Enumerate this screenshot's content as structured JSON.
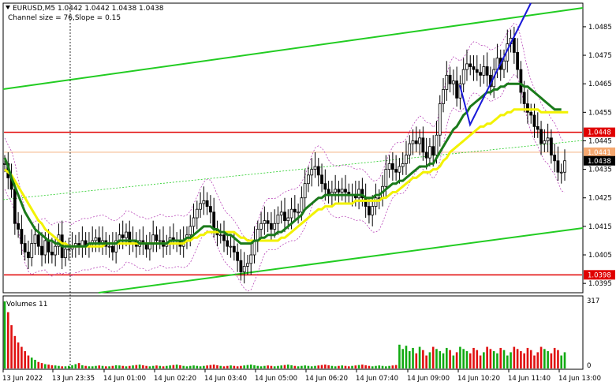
{
  "header": {
    "symbol_line": "EURUSD,M5  1.0442 1.0442 1.0438 1.0438",
    "channel_info": "Channel size = 76,Slope = 0.15"
  },
  "price_axis": {
    "ticks": [
      "1.0485",
      "1.0475",
      "1.0465",
      "1.0455",
      "1.0445",
      "1.0435",
      "1.0425",
      "1.0415",
      "1.0405",
      "1.0395"
    ],
    "tick_values": [
      1.0485,
      1.0475,
      1.0465,
      1.0455,
      1.0445,
      1.0435,
      1.0425,
      1.0415,
      1.0405,
      1.0395
    ],
    "ymin": 1.0392,
    "ymax": 1.0493,
    "level_labels": [
      {
        "text": "1.0448",
        "value": 1.0448,
        "bg": "#e00000",
        "fg": "#ffffff"
      },
      {
        "text": "1.0441",
        "value": 1.0441,
        "bg": "#f5a870",
        "fg": "#ffffff"
      },
      {
        "text": "1.0438",
        "value": 1.0438,
        "bg": "#000000",
        "fg": "#ffffff"
      },
      {
        "text": "1.0398",
        "value": 1.0398,
        "bg": "#e00000",
        "fg": "#ffffff"
      }
    ]
  },
  "volume_panel": {
    "title": "Volumes 11",
    "max_label": "317",
    "zero_label": "0",
    "max_value": 317
  },
  "time_axis": {
    "labels": [
      "13 Jun 2022",
      "13 Jun 23:35",
      "14 Jun 01:00",
      "14 Jun 02:20",
      "14 Jun 03:40",
      "14 Jun 05:00",
      "14 Jun 06:20",
      "14 Jun 07:40",
      "14 Jun 09:00",
      "14 Jun 10:20",
      "14 Jun 11:40",
      "14 Jun 13:00"
    ]
  },
  "colors": {
    "bull_candle": "#000000",
    "bear_candle": "#000000",
    "channel": "#22cc22",
    "ma_slow": "#1a7a1a",
    "ma_fast": "#f2f200",
    "envelope": "#b030b0",
    "support_resistance": "#e00000",
    "trend_line": "#1818d8",
    "volume_up": "#11aa11",
    "volume_down": "#e01010"
  },
  "chart_data": {
    "type": "candlestick",
    "symbol": "EURUSD",
    "timeframe": "M5",
    "ohlc_last": {
      "open": 1.0442,
      "high": 1.0442,
      "low": 1.0438,
      "close": 1.0438
    },
    "horizontal_levels": [
      1.0448,
      1.0441,
      1.0398
    ],
    "close_series": [
      1.0437,
      1.0432,
      1.0428,
      1.0416,
      1.0414,
      1.0409,
      1.0406,
      1.0404,
      1.0409,
      1.0412,
      1.0408,
      1.0405,
      1.041,
      1.0406,
      1.0405,
      1.0408,
      1.0412,
      1.0404,
      1.0407,
      1.0407,
      1.0408,
      1.0409,
      1.0408,
      1.041,
      1.0408,
      1.0409,
      1.041,
      1.0411,
      1.0409,
      1.041,
      1.0408,
      1.0408,
      1.0406,
      1.041,
      1.0412,
      1.0411,
      1.0413,
      1.0409,
      1.041,
      1.0408,
      1.041,
      1.0409,
      1.0407,
      1.0409,
      1.0412,
      1.041,
      1.041,
      1.0408,
      1.0409,
      1.0411,
      1.041,
      1.041,
      1.0408,
      1.041,
      1.0412,
      1.0415,
      1.0418,
      1.0421,
      1.0423,
      1.0424,
      1.0422,
      1.042,
      1.0414,
      1.0412,
      1.0412,
      1.041,
      1.0408,
      1.0408,
      1.0406,
      1.0403,
      1.0399,
      1.0401,
      1.0402,
      1.0405,
      1.041,
      1.0414,
      1.0416,
      1.0417,
      1.0416,
      1.0414,
      1.0416,
      1.0419,
      1.042,
      1.0417,
      1.0418,
      1.0421,
      1.042,
      1.042,
      1.0425,
      1.043,
      1.0433,
      1.0435,
      1.0436,
      1.0433,
      1.043,
      1.0428,
      1.0426,
      1.0427,
      1.0428,
      1.0427,
      1.0428,
      1.0427,
      1.0426,
      1.0426,
      1.0425,
      1.0428,
      1.0425,
      1.0422,
      1.0419,
      1.0422,
      1.0425,
      1.0425,
      1.0429,
      1.0435,
      1.0437,
      1.0435,
      1.0434,
      1.0436,
      1.0437,
      1.044,
      1.0444,
      1.0445,
      1.0444,
      1.0446,
      1.0441,
      1.0439,
      1.0443,
      1.044,
      1.0447,
      1.0458,
      1.0463,
      1.0468,
      1.0465,
      1.0466,
      1.046,
      1.0465,
      1.047,
      1.0472,
      1.0471,
      1.047,
      1.0469,
      1.0468,
      1.0471,
      1.0468,
      1.0464,
      1.047,
      1.0474,
      1.047,
      1.0473,
      1.0479,
      1.0481,
      1.0476,
      1.047,
      1.0462,
      1.0458,
      1.0455,
      1.0454,
      1.045,
      1.0449,
      1.0444,
      1.0445,
      1.0446,
      1.044,
      1.0438,
      1.0434,
      1.0434,
      1.0438
    ],
    "ma_fast_series": [
      1.0435,
      1.0434,
      1.0433,
      1.0431,
      1.0429,
      1.0427,
      1.0425,
      1.0423,
      1.0421,
      1.0419,
      1.0417,
      1.0416,
      1.0414,
      1.0413,
      1.0412,
      1.0411,
      1.041,
      1.0409,
      1.0409,
      1.0408,
      1.0408,
      1.0408,
      1.0408,
      1.0408,
      1.0408,
      1.0408,
      1.0408,
      1.0408,
      1.0408,
      1.0408,
      1.0409,
      1.0409,
      1.0409,
      1.0409,
      1.0409,
      1.0409,
      1.0409,
      1.0409,
      1.0409,
      1.0409,
      1.0409,
      1.0409,
      1.0409,
      1.0409,
      1.0409,
      1.0409,
      1.0409,
      1.0409,
      1.0409,
      1.0409,
      1.0409,
      1.0409,
      1.0409,
      1.0409,
      1.041,
      1.041,
      1.0411,
      1.0411,
      1.0412,
      1.0412,
      1.0413,
      1.0413,
      1.0413,
      1.0413,
      1.0413,
      1.0413,
      1.0413,
      1.0413,
      1.0413,
      1.0412,
      1.0411,
      1.0411,
      1.041,
      1.041,
      1.041,
      1.041,
      1.041,
      1.041,
      1.041,
      1.041,
      1.041,
      1.041,
      1.0411,
      1.0411,
      1.0412,
      1.0413,
      1.0414,
      1.0415,
      1.0416,
      1.0417,
      1.0418,
      1.0419,
      1.042,
      1.0421,
      1.0421,
      1.0422,
      1.0422,
      1.0422,
      1.0423,
      1.0423,
      1.0423,
      1.0423,
      1.0423,
      1.0423,
      1.0424,
      1.0424,
      1.0424,
      1.0424,
      1.0424,
      1.0424,
      1.0424,
      1.0424,
      1.0425,
      1.0425,
      1.0426,
      1.0427,
      1.0427,
      1.0428,
      1.0429,
      1.043,
      1.0431,
      1.0432,
      1.0432,
      1.0433,
      1.0434,
      1.0434,
      1.0434,
      1.0435,
      1.0435,
      1.0436,
      1.0438,
      1.0439,
      1.0441,
      1.0442,
      1.0443,
      1.0444,
      1.0445,
      1.0446,
      1.0447,
      1.0448,
      1.0449,
      1.045,
      1.045,
      1.0451,
      1.0451,
      1.0452,
      1.0453,
      1.0454,
      1.0454,
      1.0455,
      1.0455,
      1.0456,
      1.0456,
      1.0456,
      1.0456,
      1.0456,
      1.0456,
      1.0456,
      1.0456,
      1.0455,
      1.0455,
      1.0455,
      1.0455,
      1.0455,
      1.0455,
      1.0455,
      1.0455,
      1.0455
    ],
    "ma_slow_series": [
      1.0439,
      1.0436,
      1.0432,
      1.0429,
      1.0426,
      1.0423,
      1.042,
      1.0418,
      1.0416,
      1.0414,
      1.0413,
      1.0412,
      1.0411,
      1.041,
      1.041,
      1.0409,
      1.0409,
      1.0408,
      1.0408,
      1.0408,
      1.0408,
      1.0408,
      1.0408,
      1.0408,
      1.0408,
      1.0409,
      1.0409,
      1.0409,
      1.0409,
      1.0409,
      1.0409,
      1.0409,
      1.0409,
      1.0409,
      1.041,
      1.041,
      1.041,
      1.041,
      1.041,
      1.041,
      1.0409,
      1.0409,
      1.0409,
      1.0409,
      1.0409,
      1.0409,
      1.0409,
      1.0409,
      1.0409,
      1.041,
      1.041,
      1.041,
      1.041,
      1.041,
      1.0411,
      1.0411,
      1.0412,
      1.0413,
      1.0414,
      1.0415,
      1.0415,
      1.0415,
      1.0414,
      1.0414,
      1.0413,
      1.0413,
      1.0412,
      1.0412,
      1.0411,
      1.041,
      1.0409,
      1.0409,
      1.0409,
      1.0409,
      1.041,
      1.041,
      1.0411,
      1.0411,
      1.0412,
      1.0412,
      1.0412,
      1.0413,
      1.0413,
      1.0414,
      1.0415,
      1.0416,
      1.0417,
      1.0418,
      1.0419,
      1.0421,
      1.0422,
      1.0423,
      1.0424,
      1.0425,
      1.0425,
      1.0426,
      1.0426,
      1.0426,
      1.0426,
      1.0426,
      1.0426,
      1.0426,
      1.0426,
      1.0426,
      1.0426,
      1.0426,
      1.0426,
      1.0425,
      1.0425,
      1.0425,
      1.0426,
      1.0426,
      1.0427,
      1.0428,
      1.0429,
      1.043,
      1.043,
      1.0431,
      1.0431,
      1.0432,
      1.0433,
      1.0434,
      1.0435,
      1.0436,
      1.0436,
      1.0436,
      1.0437,
      1.0437,
      1.0439,
      1.0441,
      1.0443,
      1.0445,
      1.0447,
      1.0449,
      1.045,
      1.0452,
      1.0454,
      1.0455,
      1.0457,
      1.0458,
      1.0459,
      1.046,
      1.0461,
      1.0462,
      1.0462,
      1.0463,
      1.0463,
      1.0464,
      1.0464,
      1.0465,
      1.0465,
      1.0465,
      1.0465,
      1.0465,
      1.0464,
      1.0464,
      1.0463,
      1.0462,
      1.0461,
      1.046,
      1.0459,
      1.0458,
      1.0457,
      1.0456,
      1.0456,
      1.0456
    ],
    "volumes": [
      310,
      260,
      200,
      150,
      120,
      100,
      80,
      60,
      50,
      40,
      30,
      25,
      20,
      18,
      15,
      14,
      12,
      10,
      10,
      12,
      15,
      20,
      25,
      15,
      12,
      10,
      10,
      12,
      14,
      12,
      10,
      10,
      12,
      15,
      14,
      12,
      10,
      12,
      14,
      16,
      18,
      15,
      12,
      10,
      12,
      14,
      12,
      10,
      12,
      14,
      16,
      18,
      15,
      12,
      10,
      12,
      14,
      12,
      10,
      12,
      14,
      16,
      18,
      15,
      12,
      10,
      12,
      14,
      12,
      10,
      12,
      14,
      16,
      18,
      15,
      12,
      10,
      12,
      14,
      12,
      10,
      12,
      14,
      16,
      18,
      15,
      12,
      10,
      12,
      14,
      12,
      10,
      12,
      14,
      16,
      18,
      15,
      12,
      10,
      12,
      14,
      12,
      10,
      12,
      14,
      16,
      18,
      15,
      12,
      10,
      12,
      14,
      12,
      10,
      12,
      14,
      16,
      110,
      90,
      105,
      80,
      95,
      70,
      100,
      85,
      60,
      75,
      100,
      90,
      80,
      70,
      95,
      85,
      60,
      75,
      100,
      90,
      80,
      70,
      95,
      85,
      60,
      75,
      100,
      90,
      80,
      70,
      95,
      85,
      60,
      75,
      100,
      90,
      80,
      70,
      95,
      85,
      60,
      75,
      100,
      90,
      80,
      70,
      95,
      85,
      60,
      75,
      100
    ]
  }
}
